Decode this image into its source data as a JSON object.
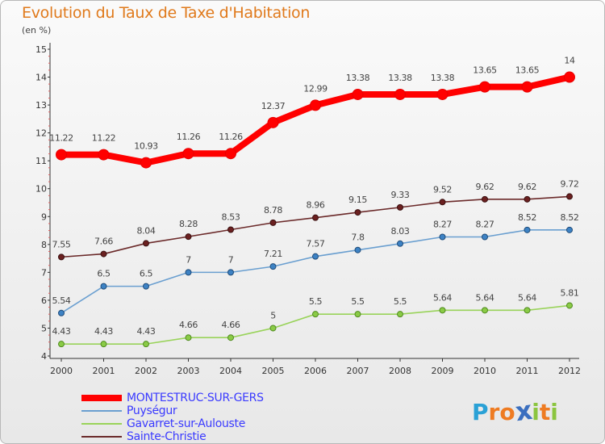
{
  "chart_data": {
    "type": "line",
    "title": "Evolution du Taux de Taxe d'Habitation",
    "subtitle": "(en %)",
    "x": [
      "2000",
      "2001",
      "2002",
      "2003",
      "2004",
      "2005",
      "2006",
      "2007",
      "2008",
      "2009",
      "2010",
      "2011",
      "2012"
    ],
    "ylim": [
      4,
      15
    ],
    "yticks": [
      "4",
      "5",
      "6",
      "7",
      "8",
      "9",
      "10",
      "11",
      "12",
      "13",
      "14",
      "15"
    ],
    "grid": false,
    "legend_position": "bottom-left",
    "series": [
      {
        "name": "MONTESTRUC-SUR-GERS",
        "color": "#ff0000",
        "label_color": "#3a3aff",
        "values": [
          11.22,
          11.22,
          10.93,
          11.26,
          11.26,
          12.37,
          12.99,
          13.38,
          13.38,
          13.38,
          13.65,
          13.65,
          14
        ],
        "labels": [
          "11.22",
          "11.22",
          "10.93",
          "11.26",
          "11.26",
          "12.37",
          "12.99",
          "13.38",
          "13.38",
          "13.38",
          "13.65",
          "13.65",
          "14"
        ]
      },
      {
        "name": "Puységur",
        "color": "#6a9fd0",
        "label_color": "#3a3aff",
        "values": [
          5.54,
          6.5,
          6.5,
          7,
          7,
          7.21,
          7.57,
          7.8,
          8.03,
          8.27,
          8.27,
          8.52,
          8.52
        ],
        "labels": [
          "5.54",
          "6.5",
          "6.5",
          "7",
          "7",
          "7.21",
          "7.57",
          "7.8",
          "8.03",
          "8.27",
          "8.27",
          "8.52",
          "8.52"
        ]
      },
      {
        "name": "Gavarret-sur-Aulouste",
        "color": "#99d35a",
        "label_color": "#3a3aff",
        "values": [
          4.43,
          4.43,
          4.43,
          4.66,
          4.66,
          5,
          5.5,
          5.5,
          5.5,
          5.64,
          5.64,
          5.64,
          5.81
        ],
        "labels": [
          "4.43",
          "4.43",
          "4.43",
          "4.66",
          "4.66",
          "5",
          "5.5",
          "5.5",
          "5.5",
          "5.64",
          "5.64",
          "5.64",
          "5.81"
        ]
      },
      {
        "name": "Sainte-Christie",
        "color": "#6b2a2a",
        "label_color": "#3a3aff",
        "values": [
          7.55,
          7.66,
          8.04,
          8.28,
          8.53,
          8.78,
          8.96,
          9.15,
          9.33,
          9.52,
          9.62,
          9.62,
          9.72
        ],
        "labels": [
          "7.55",
          "7.66",
          "8.04",
          "8.28",
          "8.53",
          "8.78",
          "8.96",
          "9.15",
          "9.33",
          "9.52",
          "9.62",
          "9.62",
          "9.72"
        ]
      }
    ]
  },
  "logo": {
    "letters": [
      "P",
      "r",
      "o",
      "x",
      "i",
      "t",
      "i"
    ],
    "colors": [
      "#2aa1d6",
      "#ee7b22",
      "#ee7b22",
      "#3b6fbf",
      "#8bc53f",
      "#ee7b22",
      "#8bc53f"
    ]
  }
}
